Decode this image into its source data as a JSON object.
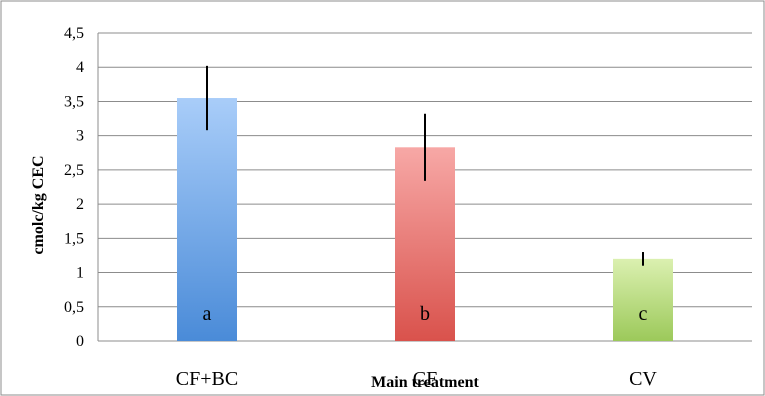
{
  "chart_data": {
    "type": "bar",
    "xlabel": "Main treatment",
    "ylabel": "cmolc/kg CEC",
    "ylim": [
      0,
      4.5
    ],
    "yticks": [
      0,
      0.5,
      1,
      1.5,
      2,
      2.5,
      3,
      3.5,
      4,
      4.5
    ],
    "ytick_labels": [
      "0",
      "0,5",
      "1",
      "1,5",
      "2",
      "2,5",
      "3",
      "3,5",
      "4",
      "4,5"
    ],
    "grid": true,
    "categories": [
      "CF+BC",
      "CF",
      "CV"
    ],
    "values": [
      3.55,
      2.83,
      1.2
    ],
    "errors": [
      0.47,
      0.49,
      0.1
    ],
    "significance_letters": [
      "a",
      "b",
      "c"
    ],
    "bar_colors": [
      {
        "top": "#a9cdf9",
        "bottom": "#4a8bd8"
      },
      {
        "top": "#f7a8a6",
        "bottom": "#d9524c"
      },
      {
        "top": "#dbf0b0",
        "bottom": "#9cc95a"
      }
    ],
    "error_bar_color": "#000000"
  }
}
